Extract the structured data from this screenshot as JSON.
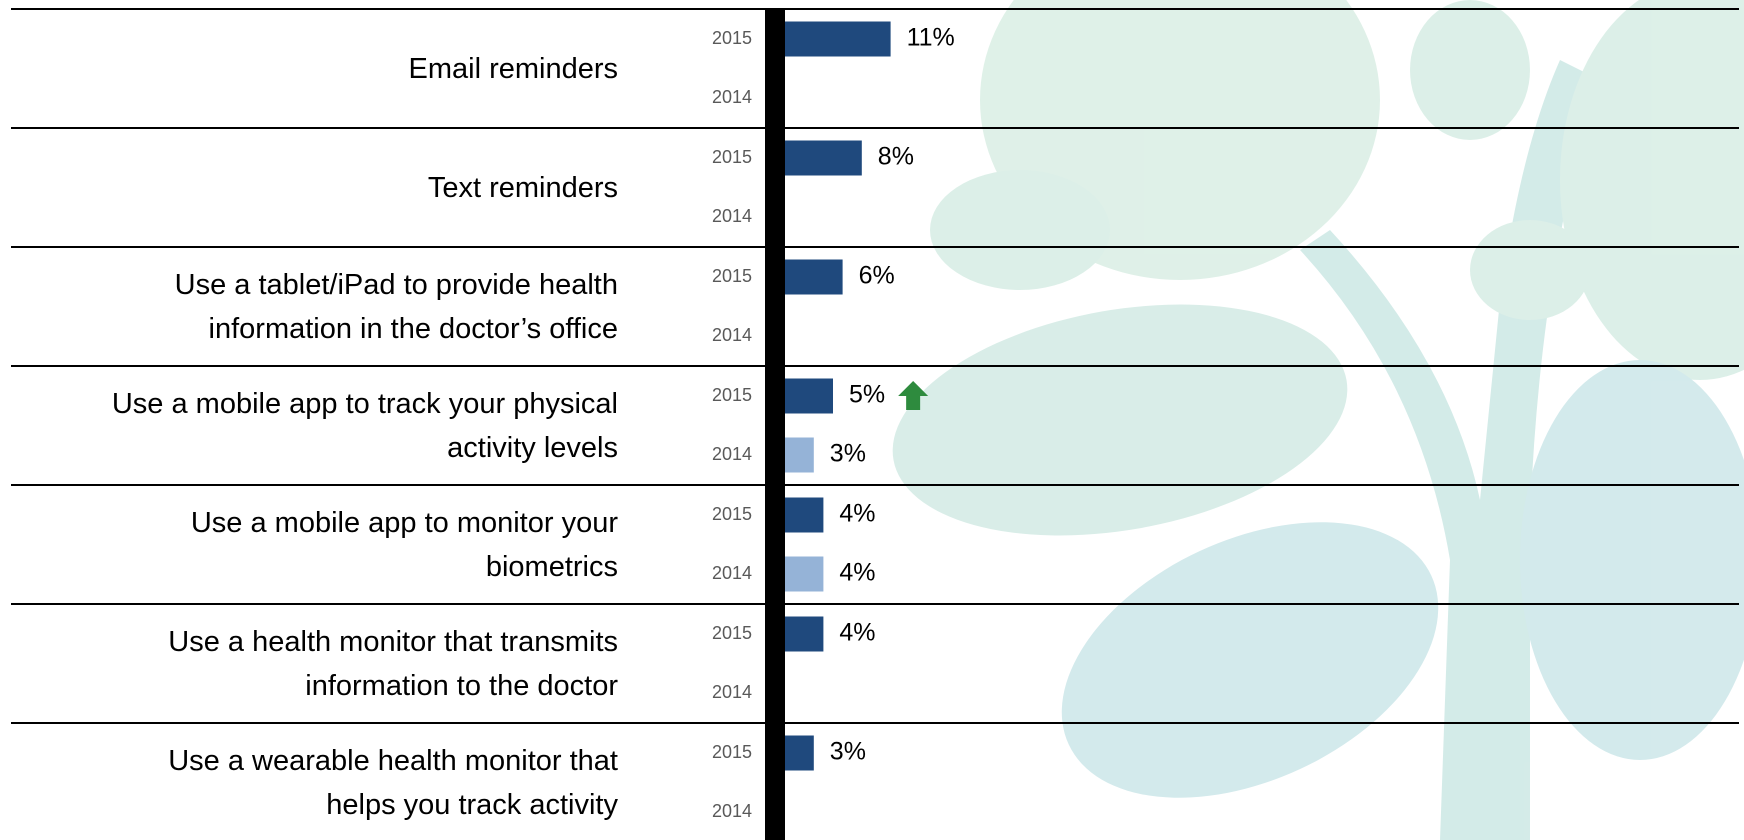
{
  "chart_data": {
    "type": "bar",
    "orientation": "horizontal",
    "categories": [
      "Email reminders",
      "Text reminders",
      "Use a tablet/iPad to provide health\ninformation in the doctor’s office",
      "Use a mobile app to track your physical\nactivity levels",
      "Use a mobile app to monitor your\nbiometrics",
      "Use a health monitor that transmits\ninformation to the doctor",
      "Use a wearable health monitor that\nhelps you track activity"
    ],
    "series": [
      {
        "name": "2015",
        "color": "#1f497d",
        "values": [
          11,
          8,
          6,
          5,
          4,
          4,
          3
        ],
        "value_labels": [
          "11%",
          "8%",
          "6%",
          "5%",
          "4%",
          "4%",
          "3%"
        ]
      },
      {
        "name": "2014",
        "color": "#95b3d7",
        "values": [
          null,
          null,
          null,
          3,
          4,
          null,
          null
        ],
        "value_labels": [
          null,
          null,
          null,
          "3%",
          "4%",
          null,
          null
        ]
      }
    ],
    "markers": [
      null,
      null,
      null,
      "up",
      null,
      null,
      null
    ],
    "marker_color": "#2e8b3e"
  }
}
